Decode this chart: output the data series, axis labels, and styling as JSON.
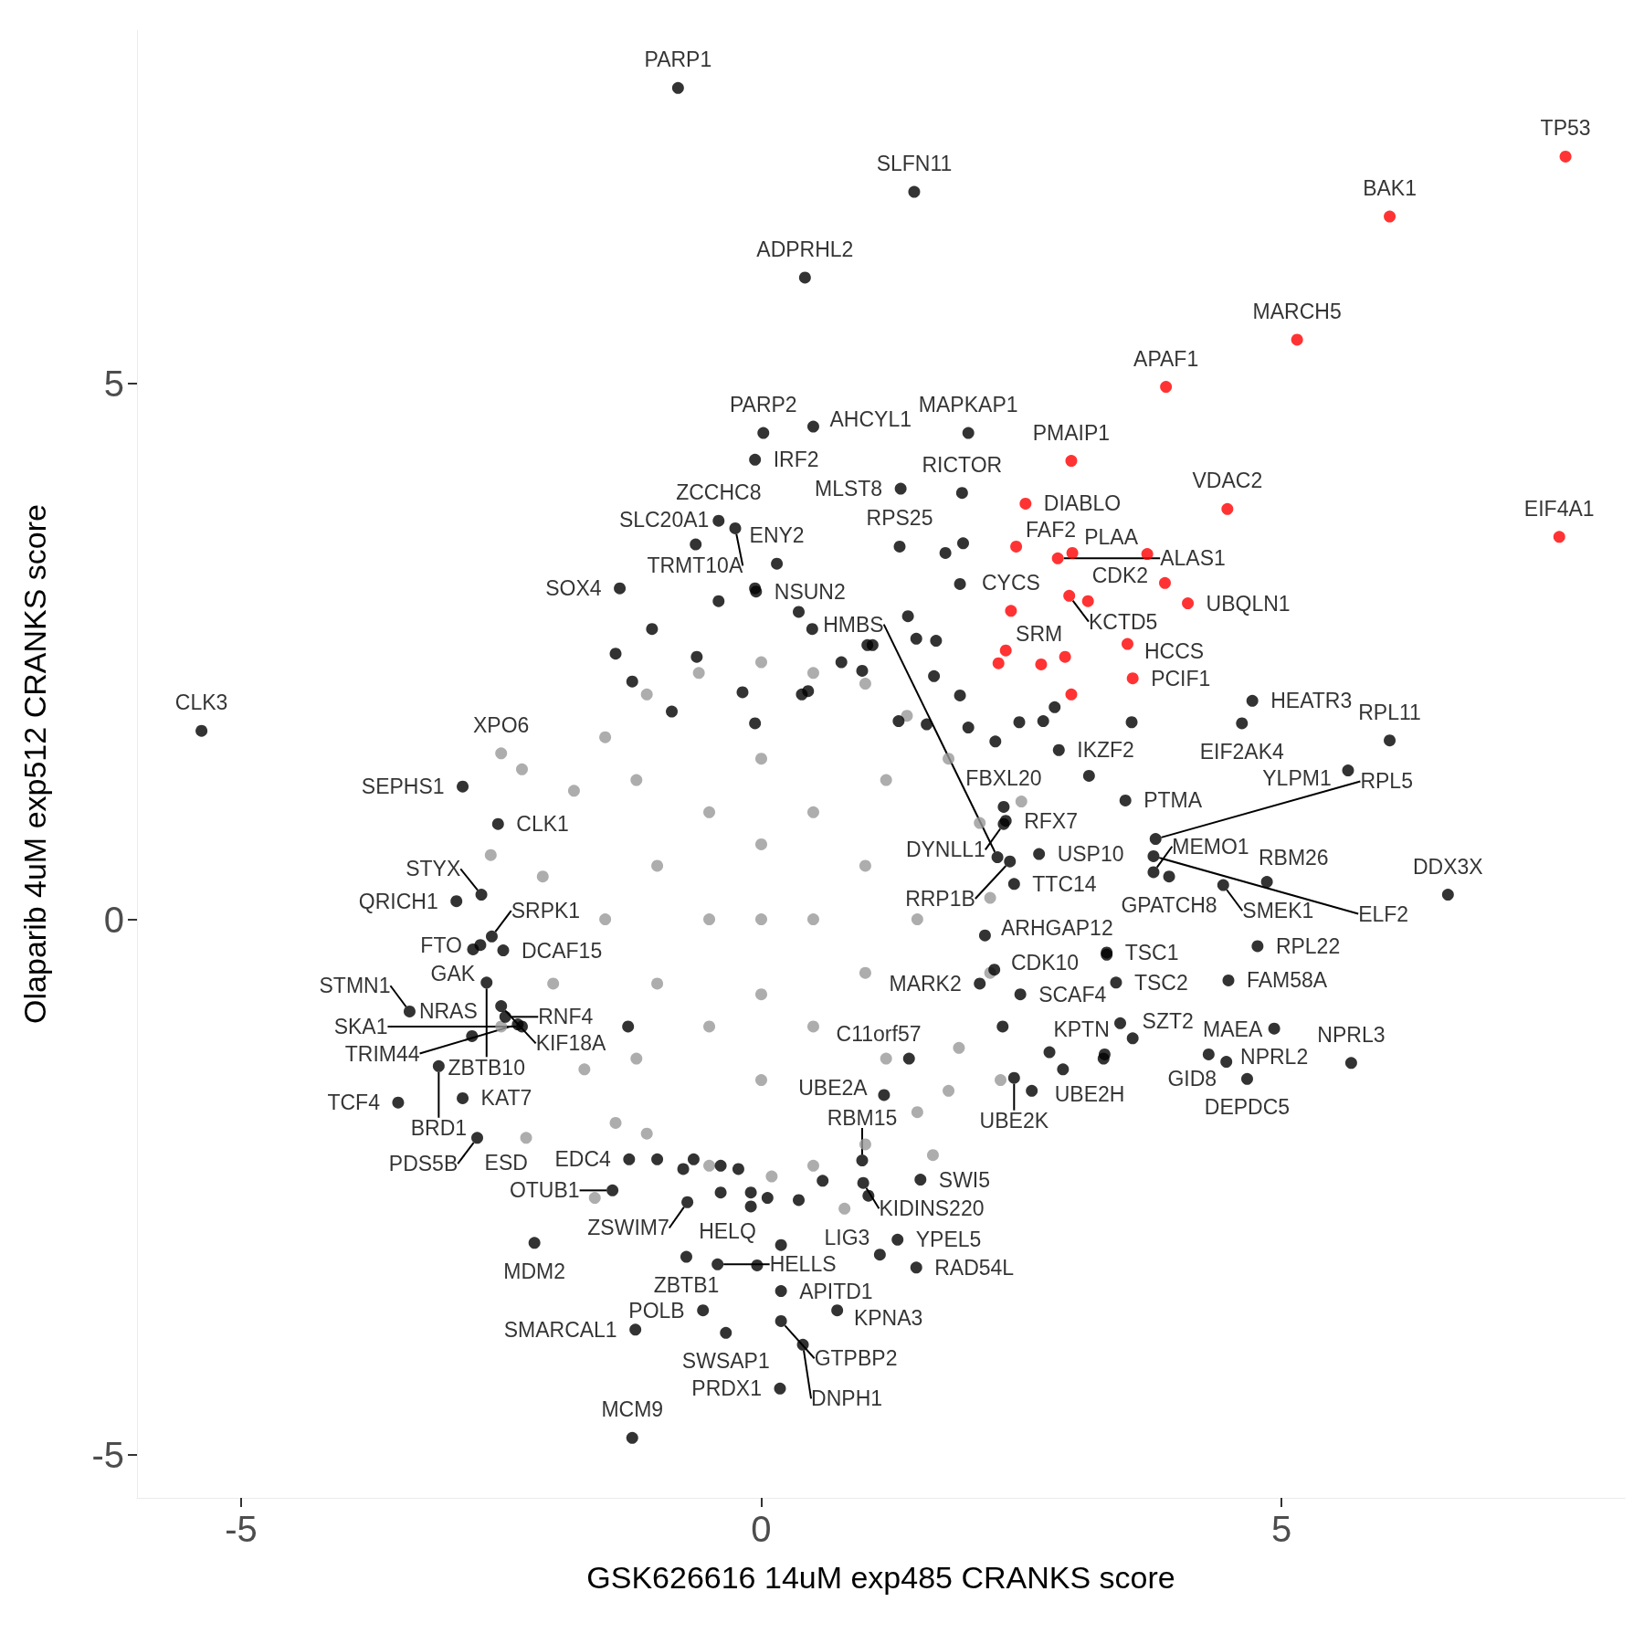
{
  "chart_data": {
    "type": "scatter",
    "xlabel": "GSK626616 14uM exp485 CRANKS score",
    "ylabel": "Olaparib 4uM exp512 CRANKS score",
    "xlim": [
      -6,
      8.3
    ],
    "ylim": [
      -5.4,
      8.3
    ],
    "xticks": [
      -5,
      0,
      5
    ],
    "yticks": [
      -5,
      0,
      5
    ],
    "grid": false,
    "marker": "circle",
    "series": [
      {
        "color": "#999999",
        "x": [
          -2.1,
          -2.0,
          -1.8,
          -1.7,
          -1.5,
          -1.4,
          -1.1,
          -1.1,
          -0.6,
          -0.5,
          0,
          0.1,
          0.5,
          0.5,
          1.0,
          1.0,
          1.4,
          1.5,
          1.8,
          1.9,
          2.1,
          2.2,
          2.2,
          1.8,
          -1.5,
          -1.0,
          -1.0,
          -0.5,
          -0.5,
          0,
          0,
          0,
          0.5,
          0.5,
          1.0,
          1.0,
          1.5,
          -0.5,
          0.5,
          0,
          0,
          -1.2,
          1.2,
          -1.2,
          1.2,
          -2.5,
          -2.26,
          -2.5,
          1.65,
          2.3,
          -2.6,
          -2.3,
          2.5,
          -1.6,
          0.8
        ],
        "values": [
          0.4,
          -0.6,
          1.2,
          -1.4,
          1.7,
          -1.9,
          2.1,
          -2.0,
          2.3,
          -2.3,
          2.4,
          -2.4,
          2.3,
          -2.3,
          2.2,
          -2.1,
          1.9,
          -1.8,
          1.5,
          -1.2,
          0.9,
          -0.5,
          0.2,
          -1.6,
          0,
          0.5,
          -0.6,
          1.0,
          -1.0,
          0,
          1.5,
          -1.5,
          1.0,
          -1.0,
          0.5,
          -0.5,
          0,
          0,
          0,
          0.7,
          -0.7,
          1.3,
          1.3,
          -1.3,
          -1.3,
          1.55,
          -2.04,
          -1.0,
          -2.2,
          -1.5,
          0.6,
          1.4,
          1.1,
          -2.6,
          -2.7
        ],
        "value_labels": [
          null,
          null,
          null,
          null,
          null,
          null,
          null,
          null,
          null,
          null,
          null,
          null,
          null,
          null,
          null,
          null,
          null,
          null,
          null,
          null,
          null,
          null,
          null,
          null,
          null,
          null,
          null,
          null,
          null,
          null,
          null,
          null,
          null,
          null,
          null,
          null,
          null,
          null,
          null,
          null,
          null,
          null,
          null,
          null,
          null,
          "XPO6",
          "ESD",
          null,
          null,
          null,
          null,
          null,
          null,
          null,
          null
        ]
      },
      {
        "color": "#000000",
        "x": [
          -0.8,
          1.47,
          0.42,
          0.02,
          -0.06,
          0.5,
          1.99,
          1.34,
          1.93,
          -0.41,
          -0.25,
          -0.63,
          1.33,
          -0.05,
          0.15,
          -1.36,
          -5.38,
          -2.87,
          -2.53,
          -2.69,
          -2.93,
          -2.59,
          -2.77,
          -2.7,
          -2.48,
          -3.38,
          -2.64,
          -2.5,
          -2.46,
          -2.34,
          -2.3,
          -2.78,
          -3.1,
          -3.49,
          -2.87,
          -2.73,
          -1.27,
          -1.43,
          -0.71,
          -2.18,
          -0.72,
          -0.42,
          -1.21,
          -0.56,
          -0.1,
          0.19,
          -0.34,
          -1.24,
          0.18,
          0.4,
          0.19,
          0.73,
          1.49,
          1.31,
          1.14,
          1.53,
          0.97,
          0.98,
          1.18,
          1.42,
          2.1,
          2.43,
          2.9,
          3.3,
          2.49,
          2.15,
          2.24,
          2.43,
          3.77,
          2.67,
          2.35,
          2.39,
          2.27,
          2.33,
          2.33,
          2.86,
          3.5,
          3.79,
          3.77,
          3.92,
          4.44,
          4.86,
          6.6,
          4.77,
          3.32,
          4.49,
          3.41,
          3.57,
          4.93,
          4.47,
          5.67,
          4.3,
          4.67,
          4.72,
          4.62,
          6.04,
          5.64,
          -1.05,
          -1.4,
          -1.24,
          -0.86,
          -0.62,
          -0.41,
          -0.06,
          0.36,
          0.49,
          0.77,
          1.02,
          1.41,
          1.49,
          1.68,
          1.77,
          1.91,
          1.94,
          1.66,
          1.07,
          0.97,
          0.39,
          1.91,
          1.59,
          1.32,
          -0.18,
          -0.06,
          0.45,
          1.99,
          2.25,
          2.48,
          2.71,
          2.82,
          3.15,
          3.56,
          3.29,
          3.32,
          3.45,
          2.32,
          2.77,
          2.6,
          -1.28,
          -1.0,
          -0.75,
          -0.39,
          -0.22,
          0.06,
          0.36,
          1.03,
          0.59,
          0.19,
          -0.39,
          -0.65,
          -0.1,
          -0.04
        ],
        "values": [
          7.76,
          6.79,
          5.99,
          4.54,
          4.29,
          4.6,
          4.54,
          4.02,
          3.98,
          3.72,
          3.65,
          3.5,
          3.48,
          3.06,
          3.32,
          3.09,
          1.76,
          1.24,
          0.89,
          0.23,
          0.17,
          -0.16,
          -0.28,
          -0.24,
          -0.29,
          -0.86,
          -0.59,
          -0.81,
          -0.91,
          -0.98,
          -1.0,
          -1.09,
          -1.37,
          -1.71,
          -1.67,
          -2.04,
          -2.24,
          -2.53,
          -2.64,
          -3.02,
          -3.15,
          -3.22,
          -3.83,
          -3.65,
          -2.68,
          -3.47,
          -3.86,
          -4.84,
          -4.38,
          -3.97,
          -3.75,
          -3.65,
          -3.25,
          -2.99,
          -3.13,
          -2.43,
          -2.25,
          -2.46,
          -1.64,
          -1.3,
          -0.6,
          -1.48,
          -1.4,
          -1.26,
          -0.7,
          -0.15,
          -0.47,
          0.33,
          0.44,
          0.61,
          0.92,
          0.54,
          0.58,
          1.05,
          0.89,
          1.58,
          1.11,
          0.75,
          0.59,
          0.4,
          0.32,
          0.35,
          0.23,
          -0.25,
          -0.31,
          -0.57,
          -0.59,
          -1.11,
          -1.02,
          -1.33,
          -1.34,
          -1.26,
          -1.49,
          2.04,
          1.83,
          1.67,
          1.39,
          2.71,
          2.48,
          2.22,
          1.94,
          2.45,
          2.97,
          3.09,
          2.87,
          2.71,
          2.4,
          2.56,
          2.83,
          2.62,
          2.6,
          3.42,
          3.13,
          3.51,
          2.27,
          2.56,
          2.32,
          2.1,
          2.09,
          1.82,
          1.85,
          2.12,
          1.83,
          2.13,
          1.79,
          1.66,
          1.84,
          1.85,
          1.98,
          1.34,
          1.84,
          -1.3,
          -0.33,
          -0.97,
          -1.0,
          -1.24,
          -1.6,
          -1.0,
          -2.24,
          -2.33,
          -2.3,
          -2.33,
          -2.6,
          -2.62,
          -2.58,
          -2.44,
          -3.04,
          -2.55,
          -2.24,
          -2.55,
          -3.23
        ],
        "value_labels": [
          "PARP1",
          "SLFN11",
          "ADPRHL2",
          "PARP2",
          "IRF2",
          "AHCYL1",
          "MAPKAP1",
          "MLST8",
          "RICTOR",
          "ZCCHC8",
          "TRMT10A",
          "SLC20A1",
          "RPS25",
          "NSUN2",
          "ENY2",
          "SOX4",
          "CLK3",
          "SEPHS1",
          "CLK1",
          "STYX",
          "QRICH1",
          "SRPK1",
          "GAK",
          "FTO",
          "DCAF15",
          "STMN1",
          "ZBTB10",
          "KIF18A",
          "RNF4",
          "TRIM44",
          "SKA1",
          "NRAS",
          "BRD1",
          "TCF4",
          "KAT7",
          "PDS5B",
          "EDC4",
          "OTUB1",
          "ZSWIM7",
          "MDM2",
          "ZBTB1",
          "HELLS",
          "SMARCAL1",
          "POLB",
          "HELQ",
          "APITD1",
          "SWSAP1",
          "MCM9",
          "PRDX1",
          "DNPH1",
          "GTPBP2",
          "KPNA3",
          "RAD54L",
          "YPEL5",
          "LIG3",
          "SWI5",
          "RBM15",
          "KIDINS220",
          "UBE2A",
          "C11orf57",
          "MARK2",
          "UBE2K",
          "UBE2H",
          "KPTN",
          "SCAF4",
          "ARHGAP12",
          "CDK10",
          "TTC14",
          "MEMO1",
          "USP10",
          "RFX7",
          "RRP1B",
          "HMBS",
          "FBXL20",
          "DYNLL1",
          "IKZF2",
          "PTMA",
          "RPL5",
          "ELF2",
          "GPATCH8",
          "SMEK1",
          "RBM26",
          "DDX3X",
          "RPL22",
          "TSC1",
          "FAM58A",
          "TSC2",
          "SZT2",
          "NPRL2",
          "GID8",
          "NPRL3",
          "MAEA",
          "DEPDC5",
          "HEATR3",
          "EIF2AK4",
          "RPL11",
          "YLPM1",
          null,
          null,
          null,
          null,
          null,
          null,
          null,
          null,
          null,
          null,
          null,
          null,
          null,
          null,
          null,
          null,
          null,
          null,
          null,
          null,
          null,
          null,
          null,
          null,
          null,
          null,
          null,
          null,
          null,
          null,
          null,
          null,
          null,
          null,
          null,
          null,
          null,
          null,
          null,
          null,
          null,
          null,
          null,
          null,
          null,
          null,
          null,
          null,
          null,
          null,
          null,
          null,
          null,
          null
        ]
      },
      {
        "color": "#ff0000",
        "x": [
          7.73,
          6.04,
          5.15,
          3.89,
          7.67,
          4.48,
          2.98,
          2.54,
          2.45,
          2.85,
          3.71,
          2.96,
          3.88,
          2.4,
          3.52,
          2.35,
          3.57,
          4.1,
          2.99,
          3.14,
          2.28,
          2.69,
          2.92,
          2.98
        ],
        "values": [
          7.12,
          6.56,
          5.41,
          4.97,
          3.57,
          3.83,
          4.28,
          3.88,
          3.48,
          3.37,
          3.41,
          3.02,
          3.14,
          2.88,
          2.57,
          2.51,
          2.25,
          2.95,
          3.42,
          2.97,
          2.39,
          2.38,
          2.45,
          2.1
        ],
        "value_labels": [
          "TP53",
          "BAK1",
          "MARCH5",
          "APAF1",
          "EIF4A1",
          "VDAC2",
          "PMAIP1",
          "DIABLO",
          "FAF2",
          "ALAS1",
          "PLAA",
          "KCTD5",
          "CDK2",
          "CYCS",
          "HCCS",
          "SRM",
          "PCIF1",
          "UBQLN1",
          null,
          null,
          null,
          null,
          null,
          null
        ]
      }
    ]
  }
}
